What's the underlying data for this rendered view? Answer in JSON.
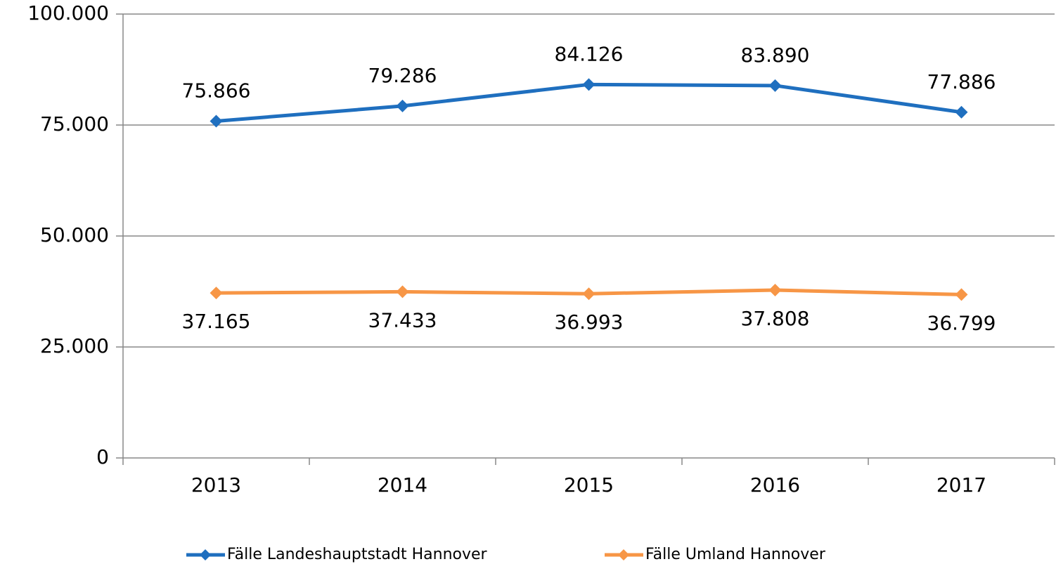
{
  "chart_data": {
    "type": "line",
    "categories": [
      "2013",
      "2014",
      "2015",
      "2016",
      "2017"
    ],
    "series": [
      {
        "name": "Fälle Landeshauptstadt Hannover",
        "color": "#1f6fbf",
        "values": [
          75866,
          79286,
          84126,
          83890,
          77886
        ],
        "value_labels": [
          "75.866",
          "79.286",
          "84.126",
          "83.890",
          "77.886"
        ]
      },
      {
        "name": "Fälle Umland Hannover",
        "color": "#f79646",
        "values": [
          37165,
          37433,
          36993,
          37808,
          36799
        ],
        "value_labels": [
          "37.165",
          "37.433",
          "36.993",
          "37.808",
          "36.799"
        ]
      }
    ],
    "ylim": [
      0,
      100000
    ],
    "yticks": [
      {
        "value": 0,
        "label": "0"
      },
      {
        "value": 25000,
        "label": "25.000"
      },
      {
        "value": 50000,
        "label": "50.000"
      },
      {
        "value": 75000,
        "label": "75.000"
      },
      {
        "value": 100000,
        "label": "100.000"
      }
    ],
    "grid": true,
    "legend": "bottom"
  }
}
